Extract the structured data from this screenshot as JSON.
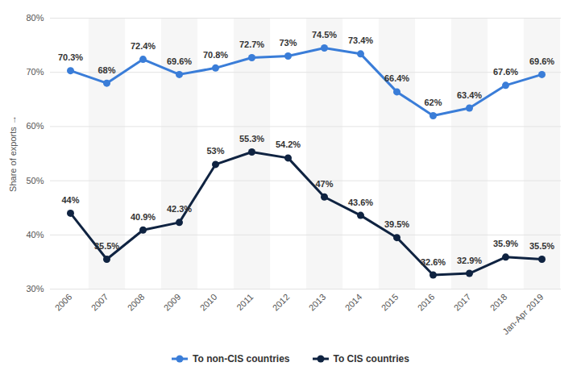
{
  "chart_data": {
    "type": "line",
    "y_label": "Share of exports",
    "categories": [
      "2006",
      "2007",
      "2008",
      "2009",
      "2010",
      "2011",
      "2012",
      "2013",
      "2014",
      "2015",
      "2016",
      "2017",
      "2018",
      "Jan-Apr 2019"
    ],
    "series": [
      {
        "name": "To non-CIS countries",
        "color": "#3a7dd8",
        "marker": "circle",
        "line_style": "solid",
        "values": [
          70.3,
          68,
          72.4,
          69.6,
          70.8,
          72.7,
          73,
          74.5,
          73.4,
          66.4,
          62,
          63.4,
          67.6,
          69.6
        ],
        "value_labels": [
          "70.3%",
          "68%",
          "72.4%",
          "69.6%",
          "70.8%",
          "72.7%",
          "73%",
          "74.5%",
          "73.4%",
          "66.4%",
          "62%",
          "63.4%",
          "67.6%",
          "69.6%"
        ]
      },
      {
        "name": "To CIS countries",
        "color": "#0f2341",
        "marker": "circle",
        "line_style": "solid",
        "values": [
          44,
          35.5,
          40.9,
          42.3,
          53,
          55.3,
          54.2,
          47,
          43.6,
          39.5,
          32.6,
          32.9,
          35.9,
          35.5
        ],
        "value_labels": [
          "44%",
          "35.5%",
          "40.9%",
          "42.3%",
          "53%",
          "55.3%",
          "54.2%",
          "47%",
          "43.6%",
          "39.5%",
          "32.6%",
          "32.9%",
          "35.9%",
          "35.5%"
        ]
      }
    ],
    "ylim": [
      30,
      80
    ],
    "yticks": [
      {
        "value": 30,
        "label": "30%"
      },
      {
        "value": 40,
        "label": "40%"
      },
      {
        "value": 50,
        "label": "50%"
      },
      {
        "value": 60,
        "label": "60%"
      },
      {
        "value": 70,
        "label": "70%"
      },
      {
        "value": 80,
        "label": "80%"
      }
    ],
    "grid": true,
    "data_labels": true,
    "legend": "bottom"
  }
}
